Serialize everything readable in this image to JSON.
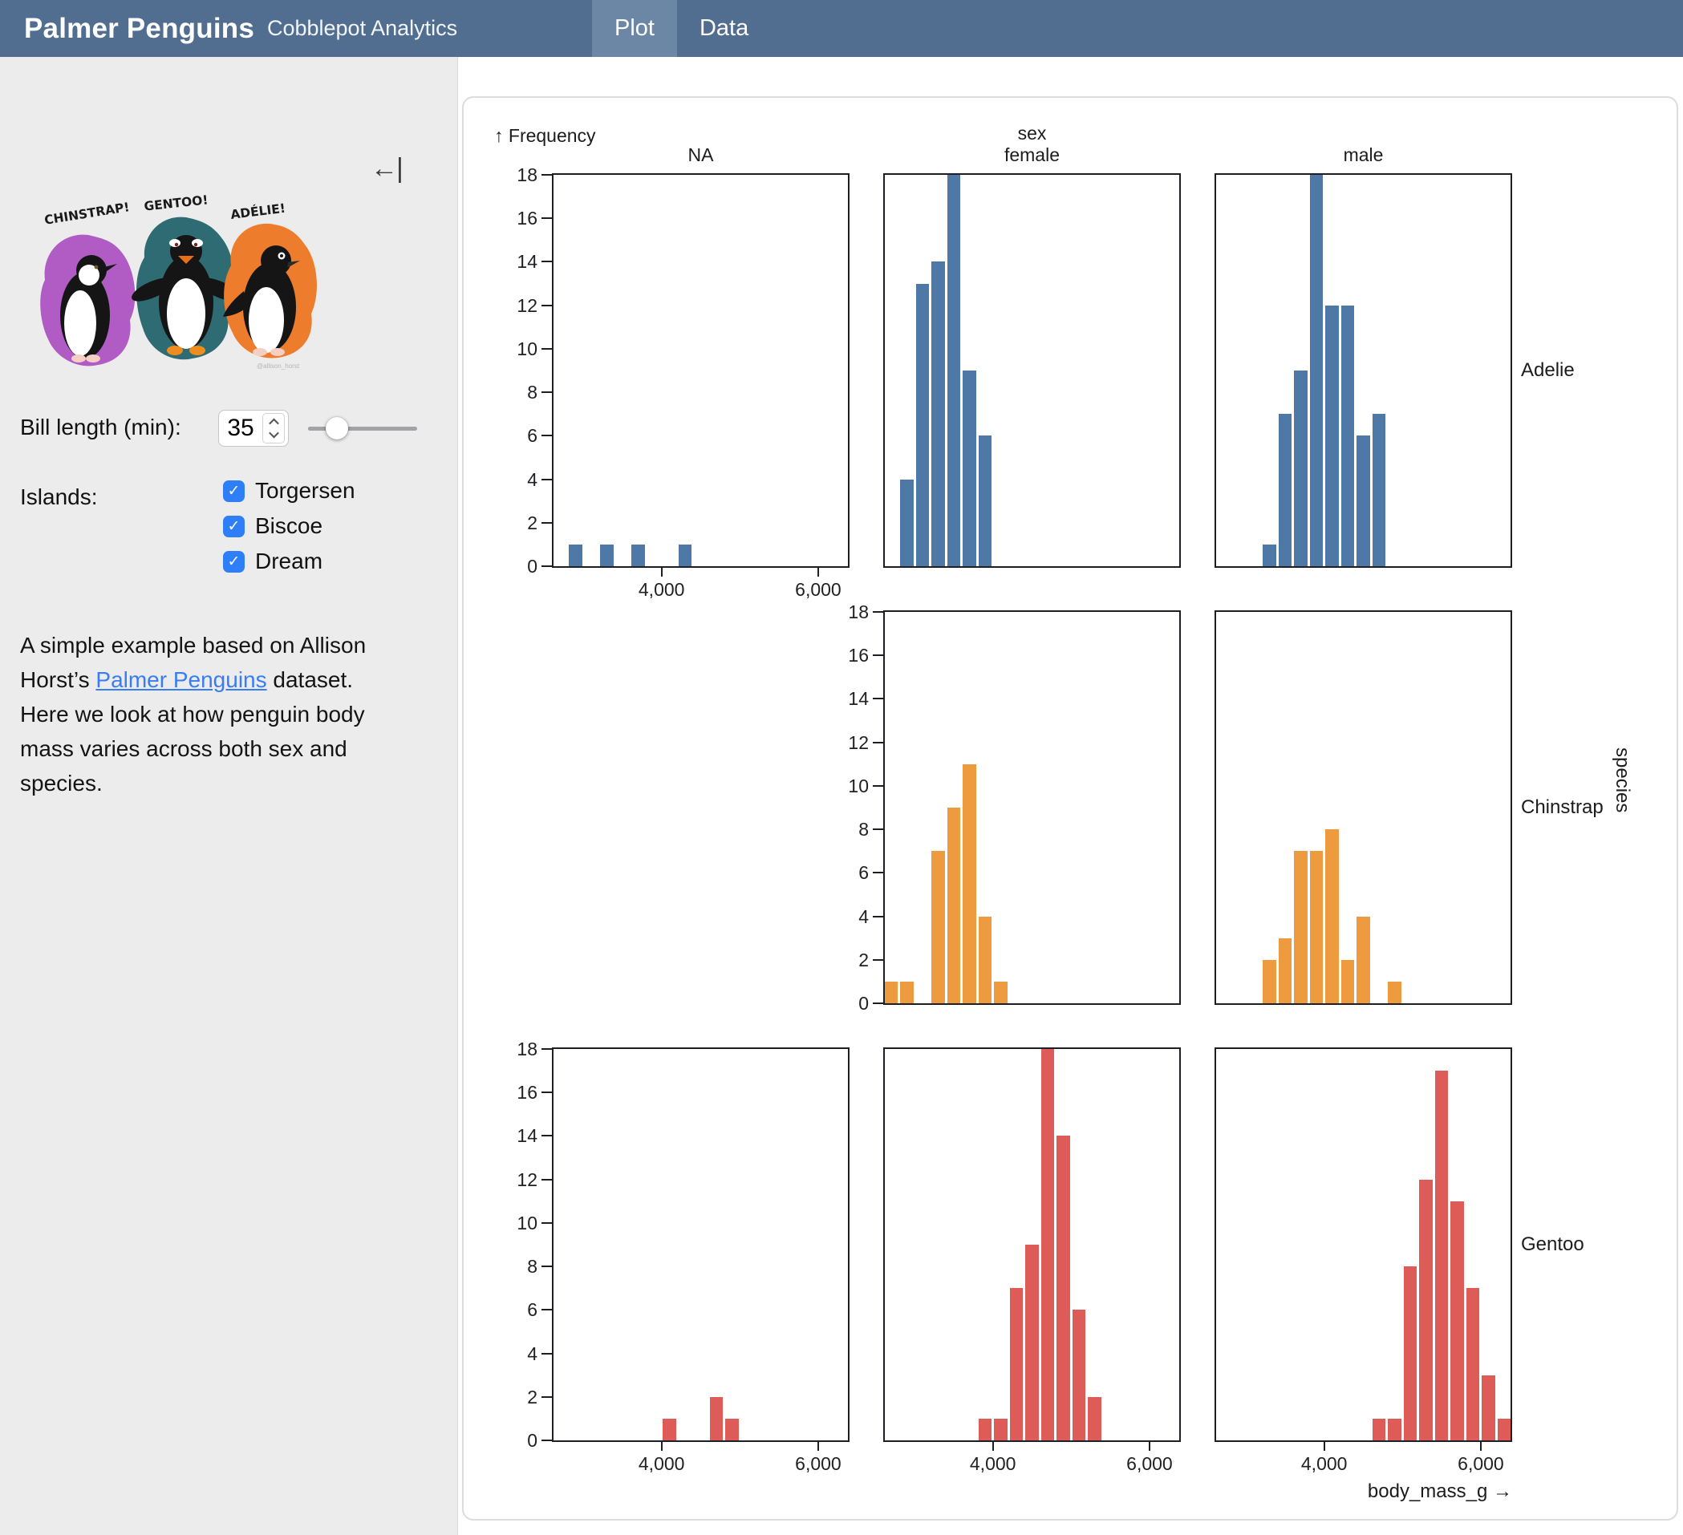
{
  "header": {
    "title": "Palmer Penguins",
    "subtitle": "Cobblepot Analytics",
    "tabs": [
      {
        "label": "Plot",
        "active": true
      },
      {
        "label": "Data",
        "active": false
      }
    ]
  },
  "sidebar": {
    "collapse_icon": "←|",
    "artwork": {
      "credit": "@allison_horst",
      "penguins": [
        {
          "label": "CHINSTRAP!",
          "color": "#b15cc4"
        },
        {
          "label": "GENTOO!",
          "color": "#2e6b72"
        },
        {
          "label": "ADÉLIE!",
          "color": "#ed7d2c"
        }
      ]
    },
    "bill_length": {
      "label": "Bill length (min):",
      "value": "35",
      "slider_pos": 0.2
    },
    "islands": {
      "label": "Islands:",
      "options": [
        {
          "label": "Torgersen",
          "checked": true
        },
        {
          "label": "Biscoe",
          "checked": true
        },
        {
          "label": "Dream",
          "checked": true
        }
      ]
    },
    "description": {
      "before": "A simple example based on Allison Horst’s ",
      "link": "Palmer Penguins",
      "after": " dataset. Here we look at how penguin body mass varies across both sex and species."
    }
  },
  "chart_data": {
    "type": "bar",
    "mark": "histogram",
    "title": "",
    "ylabel": "↑ Frequency",
    "xlabel": "body_mass_g →",
    "x_field": "body_mass_g",
    "bin_width": 200,
    "x_domain": [
      2600,
      6400
    ],
    "ylim": [
      0,
      18
    ],
    "y_ticks": [
      "0",
      "2",
      "4",
      "6",
      "8",
      "10",
      "12",
      "14",
      "16",
      "18"
    ],
    "x_ticks": [
      4000,
      6000
    ],
    "x_tick_labels": [
      "4,000",
      "6,000"
    ],
    "grid": false,
    "facet_x": {
      "label": "sex",
      "categories": [
        "NA",
        "female",
        "male"
      ]
    },
    "facet_y": {
      "label": "species",
      "categories": [
        "Adelie",
        "Chinstrap",
        "Gentoo"
      ]
    },
    "colors": {
      "Adelie": "#4e79a7",
      "Chinstrap": "#ee9a3e",
      "Gentoo": "#dd5c58"
    },
    "facets": [
      {
        "species": "Adelie",
        "sex": "NA",
        "y_axis": true,
        "x_axis": true,
        "bins": [
          {
            "x0": 2800,
            "count": 1
          },
          {
            "x0": 3200,
            "count": 1
          },
          {
            "x0": 3600,
            "count": 1
          },
          {
            "x0": 4200,
            "count": 1
          }
        ]
      },
      {
        "species": "Adelie",
        "sex": "female",
        "y_axis": false,
        "x_axis": false,
        "bins": [
          {
            "x0": 2800,
            "count": 4
          },
          {
            "x0": 3000,
            "count": 13
          },
          {
            "x0": 3200,
            "count": 14
          },
          {
            "x0": 3400,
            "count": 18
          },
          {
            "x0": 3600,
            "count": 9
          },
          {
            "x0": 3800,
            "count": 6
          }
        ]
      },
      {
        "species": "Adelie",
        "sex": "male",
        "y_axis": false,
        "x_axis": false,
        "bins": [
          {
            "x0": 3200,
            "count": 1
          },
          {
            "x0": 3400,
            "count": 7
          },
          {
            "x0": 3600,
            "count": 9
          },
          {
            "x0": 3800,
            "count": 18
          },
          {
            "x0": 4000,
            "count": 12
          },
          {
            "x0": 4200,
            "count": 12
          },
          {
            "x0": 4400,
            "count": 6
          },
          {
            "x0": 4600,
            "count": 7
          }
        ]
      },
      {
        "species": "Chinstrap",
        "sex": "female",
        "y_axis": true,
        "x_axis": false,
        "bins": [
          {
            "x0": 2600,
            "count": 1
          },
          {
            "x0": 2800,
            "count": 1
          },
          {
            "x0": 3200,
            "count": 7
          },
          {
            "x0": 3400,
            "count": 9
          },
          {
            "x0": 3600,
            "count": 11
          },
          {
            "x0": 3800,
            "count": 4
          },
          {
            "x0": 4000,
            "count": 1
          }
        ]
      },
      {
        "species": "Chinstrap",
        "sex": "male",
        "y_axis": false,
        "x_axis": false,
        "bins": [
          {
            "x0": 3200,
            "count": 2
          },
          {
            "x0": 3400,
            "count": 3
          },
          {
            "x0": 3600,
            "count": 7
          },
          {
            "x0": 3800,
            "count": 7
          },
          {
            "x0": 4000,
            "count": 8
          },
          {
            "x0": 4200,
            "count": 2
          },
          {
            "x0": 4400,
            "count": 4
          },
          {
            "x0": 4800,
            "count": 1
          }
        ]
      },
      {
        "species": "Gentoo",
        "sex": "NA",
        "y_axis": true,
        "x_axis": true,
        "bins": [
          {
            "x0": 4000,
            "count": 1
          },
          {
            "x0": 4600,
            "count": 2
          },
          {
            "x0": 4800,
            "count": 1
          }
        ]
      },
      {
        "species": "Gentoo",
        "sex": "female",
        "y_axis": false,
        "x_axis": true,
        "bins": [
          {
            "x0": 3800,
            "count": 1
          },
          {
            "x0": 4000,
            "count": 1
          },
          {
            "x0": 4200,
            "count": 7
          },
          {
            "x0": 4400,
            "count": 9
          },
          {
            "x0": 4600,
            "count": 18
          },
          {
            "x0": 4800,
            "count": 14
          },
          {
            "x0": 5000,
            "count": 6
          },
          {
            "x0": 5200,
            "count": 2
          }
        ]
      },
      {
        "species": "Gentoo",
        "sex": "male",
        "y_axis": false,
        "x_axis": true,
        "bins": [
          {
            "x0": 4600,
            "count": 1
          },
          {
            "x0": 4800,
            "count": 1
          },
          {
            "x0": 5000,
            "count": 8
          },
          {
            "x0": 5200,
            "count": 12
          },
          {
            "x0": 5400,
            "count": 17
          },
          {
            "x0": 5600,
            "count": 11
          },
          {
            "x0": 5800,
            "count": 7
          },
          {
            "x0": 6000,
            "count": 3
          },
          {
            "x0": 6200,
            "count": 1
          }
        ]
      }
    ]
  }
}
